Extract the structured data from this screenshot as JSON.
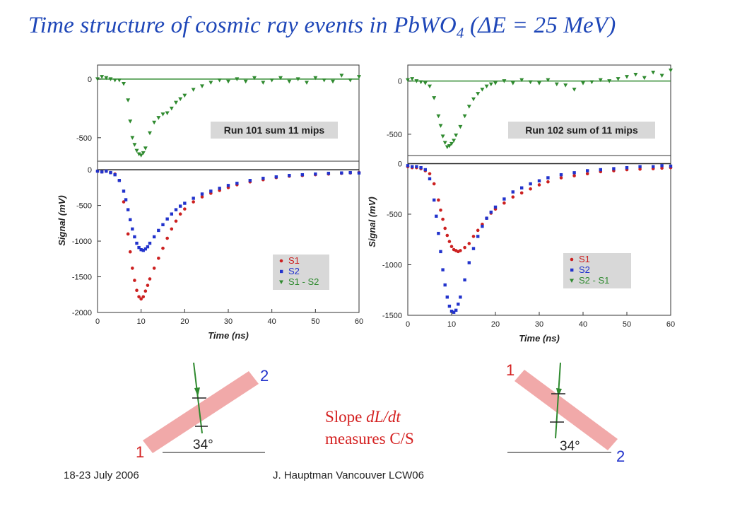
{
  "slide": {
    "title_main": "Time structure of cosmic ray events in PbWO",
    "title_sub": "4",
    "title_tail": "  (ΔE = 25 MeV)",
    "slope_line1_prefix": "Slope ",
    "slope_line1_italic": "dL/dt",
    "slope_line2": "measures C/S",
    "footer_left": "18-23 July 2006",
    "footer_center": "J. Hauptman Vancouver LCW06",
    "geometry_angle": "34°",
    "left_diagram_labels": [
      "1",
      "2"
    ],
    "right_diagram_labels": [
      "1",
      "2"
    ]
  },
  "colors": {
    "title": "#1f47b8",
    "S1": "#cc2020",
    "S2": "#2233cc",
    "diff": "#2f8a2f",
    "slab": "#f0a0a0",
    "slope_text": "#d42020"
  },
  "chart_data": [
    {
      "type": "scatter",
      "panel": "left",
      "xlabel": "Time (ns)",
      "ylabel": "Signal (mV)",
      "xlim": [
        0,
        60
      ],
      "xticks": [
        0,
        10,
        20,
        30,
        40,
        50,
        60
      ],
      "upper_yticks": [
        0,
        -500
      ],
      "lower_yticks": [
        0,
        -500,
        -1000,
        -1500,
        -2000
      ],
      "annotation": "Run 101 sum 11 mips",
      "legend": [
        "S1",
        "S2",
        "S1 - S2"
      ],
      "legend_position": "bottom-right",
      "s1_x": [
        0,
        1,
        2,
        3,
        4,
        5,
        6,
        7,
        7.5,
        8,
        8.5,
        9,
        9.5,
        10,
        10.5,
        11,
        11.5,
        12,
        13,
        14,
        15,
        16,
        17,
        18,
        19,
        20,
        22,
        24,
        26,
        28,
        30,
        32,
        35,
        38,
        41,
        44,
        47,
        50,
        53,
        56,
        58,
        60
      ],
      "s1_y": [
        -20,
        -30,
        -20,
        -40,
        -60,
        -150,
        -450,
        -900,
        -1150,
        -1380,
        -1550,
        -1690,
        -1780,
        -1810,
        -1780,
        -1700,
        -1620,
        -1530,
        -1380,
        -1240,
        -1100,
        -960,
        -830,
        -720,
        -620,
        -550,
        -450,
        -380,
        -330,
        -290,
        -250,
        -210,
        -170,
        -140,
        -110,
        -90,
        -80,
        -70,
        -60,
        -50,
        -45,
        -40
      ],
      "s2_x": [
        0,
        1,
        2,
        3,
        4,
        5,
        6,
        6.5,
        7,
        7.5,
        8,
        8.5,
        9,
        9.5,
        10,
        10.5,
        11,
        11.5,
        12,
        13,
        14,
        15,
        16,
        17,
        18,
        19,
        20,
        22,
        24,
        26,
        28,
        30,
        32,
        35,
        38,
        41,
        44,
        47,
        50,
        53,
        56,
        58,
        60
      ],
      "s2_y": [
        -20,
        -30,
        -20,
        -40,
        -70,
        -150,
        -300,
        -420,
        -560,
        -700,
        -830,
        -940,
        -1030,
        -1090,
        -1120,
        -1130,
        -1110,
        -1080,
        -1030,
        -940,
        -850,
        -770,
        -690,
        -620,
        -560,
        -510,
        -470,
        -400,
        -340,
        -300,
        -260,
        -220,
        -190,
        -150,
        -120,
        -100,
        -80,
        -70,
        -60,
        -50,
        -45,
        -40,
        -45
      ],
      "diff_x": [
        0,
        1,
        2,
        3,
        4,
        5,
        6,
        7,
        7.5,
        8,
        8.5,
        9,
        9.5,
        10,
        10.5,
        11,
        12,
        13,
        14,
        15,
        16,
        17,
        18,
        19,
        20,
        22,
        24,
        26,
        28,
        30,
        32,
        34,
        36,
        38,
        40,
        42,
        44,
        46,
        48,
        50,
        52,
        54,
        56,
        58,
        60
      ],
      "diff_y": [
        0,
        20,
        10,
        0,
        -10,
        -10,
        -40,
        -180,
        -360,
        -500,
        -560,
        -610,
        -640,
        -650,
        -630,
        -590,
        -460,
        -370,
        -330,
        -300,
        -290,
        -250,
        -200,
        -170,
        -140,
        -90,
        -60,
        -30,
        -10,
        -20,
        0,
        -20,
        10,
        -30,
        -10,
        10,
        -20,
        0,
        -30,
        10,
        -10,
        -20,
        30,
        -10,
        20
      ]
    },
    {
      "type": "scatter",
      "panel": "right",
      "xlabel": "Time (ns)",
      "ylabel": "Signal (mV)",
      "xlim": [
        0,
        60
      ],
      "xticks": [
        0,
        10,
        20,
        30,
        40,
        50,
        60
      ],
      "upper_yticks": [
        0,
        -500
      ],
      "lower_yticks": [
        0,
        -500,
        -1000,
        -1500
      ],
      "annotation": "Run 102 sum of 11 mips",
      "legend": [
        "S1",
        "S2",
        "S2 - S1"
      ],
      "legend_position": "bottom-right",
      "s1_x": [
        0,
        1,
        2,
        3,
        4,
        5,
        6,
        7,
        7.5,
        8,
        8.5,
        9,
        9.5,
        10,
        10.5,
        11,
        11.5,
        12,
        13,
        14,
        15,
        16,
        17,
        18,
        19,
        20,
        22,
        24,
        26,
        28,
        30,
        32,
        35,
        38,
        41,
        44,
        47,
        50,
        53,
        56,
        58,
        60
      ],
      "s1_y": [
        -30,
        -40,
        -40,
        -50,
        -70,
        -100,
        -200,
        -360,
        -460,
        -550,
        -640,
        -710,
        -770,
        -820,
        -850,
        -860,
        -870,
        -860,
        -830,
        -790,
        -720,
        -660,
        -600,
        -540,
        -490,
        -450,
        -390,
        -330,
        -290,
        -250,
        -210,
        -180,
        -140,
        -120,
        -100,
        -80,
        -70,
        -60,
        -55,
        -50,
        -45,
        -40
      ],
      "s2_x": [
        0,
        1,
        2,
        3,
        4,
        5,
        6,
        6.5,
        7,
        7.5,
        8,
        8.5,
        9,
        9.5,
        10,
        10.5,
        11,
        11.5,
        12,
        13,
        14,
        15,
        16,
        17,
        18,
        19,
        20,
        22,
        24,
        26,
        28,
        30,
        32,
        35,
        38,
        41,
        44,
        47,
        50,
        53,
        56,
        58,
        60
      ],
      "s2_y": [
        -20,
        -30,
        -30,
        -40,
        -60,
        -150,
        -360,
        -520,
        -690,
        -870,
        -1050,
        -1200,
        -1320,
        -1410,
        -1460,
        -1470,
        -1450,
        -1390,
        -1320,
        -1150,
        -980,
        -840,
        -720,
        -620,
        -540,
        -480,
        -430,
        -350,
        -280,
        -240,
        -200,
        -170,
        -140,
        -110,
        -90,
        -70,
        -60,
        -50,
        -40,
        -30,
        -30,
        -20,
        -25
      ],
      "diff_x": [
        0,
        1,
        2,
        3,
        4,
        5,
        6,
        7,
        7.5,
        8,
        8.5,
        9,
        9.5,
        10,
        10.5,
        11,
        12,
        13,
        14,
        15,
        16,
        17,
        18,
        19,
        20,
        22,
        24,
        26,
        28,
        30,
        32,
        34,
        36,
        38,
        40,
        42,
        44,
        46,
        48,
        50,
        52,
        54,
        56,
        58,
        60
      ],
      "diff_y": [
        10,
        20,
        0,
        -10,
        -20,
        -50,
        -160,
        -330,
        -420,
        -520,
        -580,
        -620,
        -610,
        -590,
        -560,
        -510,
        -430,
        -330,
        -240,
        -170,
        -120,
        -80,
        -50,
        -30,
        -20,
        0,
        -20,
        10,
        -10,
        -20,
        10,
        -30,
        -40,
        -80,
        -20,
        -10,
        10,
        0,
        20,
        40,
        60,
        30,
        80,
        50,
        100
      ]
    }
  ]
}
